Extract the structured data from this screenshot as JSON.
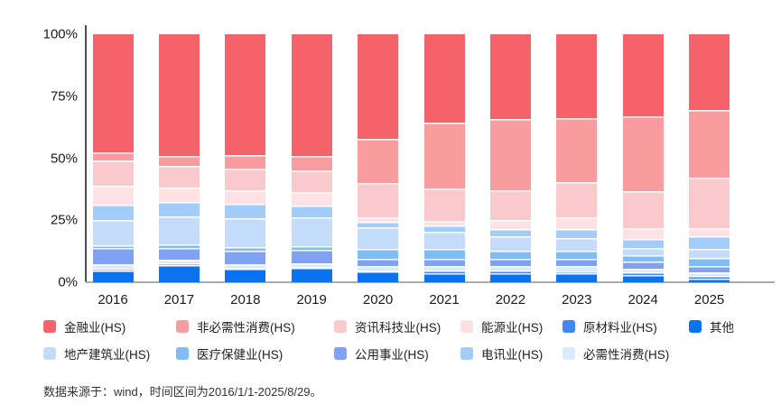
{
  "chart_data": {
    "type": "bar",
    "stacked": true,
    "percent_stacked": true,
    "categories": [
      "2016",
      "2017",
      "2018",
      "2019",
      "2020",
      "2021",
      "2022",
      "2023",
      "2024",
      "2025"
    ],
    "yticks": [
      "100%",
      "75%",
      "50%",
      "25%",
      "0%"
    ],
    "ylim": [
      0,
      100
    ],
    "grid": false,
    "legend_position": "bottom",
    "series_bottom_to_top": [
      {
        "name": "其他",
        "color": "#0b72f0",
        "values": [
          4.8,
          7.0,
          5.3,
          5.7,
          4.2,
          3.8,
          3.6,
          3.5,
          3.0,
          1.4
        ]
      },
      {
        "name": "原材料业(HS)",
        "color": "#4189f2",
        "values": [
          0.5,
          0.5,
          0.4,
          0.4,
          0.6,
          0.9,
          1.0,
          1.0,
          1.0,
          1.2
        ]
      },
      {
        "name": "必需性消费(HS)",
        "color": "#d9eafc",
        "values": [
          2.0,
          1.5,
          1.6,
          1.6,
          1.6,
          1.8,
          2.0,
          2.2,
          1.6,
          1.3
        ]
      },
      {
        "name": "公用事业(HS)",
        "color": "#81a2f2",
        "values": [
          6.7,
          5.0,
          5.6,
          5.4,
          3.1,
          2.8,
          3.0,
          2.9,
          2.6,
          2.7
        ]
      },
      {
        "name": "医疗保健业(HS)",
        "color": "#7fbdf7",
        "values": [
          0.9,
          1.2,
          1.4,
          1.3,
          4.1,
          4.2,
          3.0,
          3.3,
          2.6,
          3.4
        ]
      },
      {
        "name": "地产建筑业(HS)",
        "color": "#c4dcfa",
        "values": [
          10.2,
          11.5,
          11.4,
          11.8,
          8.6,
          7.0,
          5.9,
          4.9,
          3.0,
          3.5
        ]
      },
      {
        "name": "电讯业(HS)",
        "color": "#a2cdf9",
        "values": [
          6.2,
          5.7,
          5.8,
          4.8,
          2.3,
          2.4,
          3.0,
          3.7,
          3.7,
          5.1
        ]
      },
      {
        "name": "能源业(HS)",
        "color": "#fde1e4",
        "values": [
          7.6,
          5.7,
          5.8,
          5.4,
          1.7,
          2.0,
          3.7,
          4.8,
          4.2,
          3.3
        ]
      },
      {
        "name": "资讯科技业(HS)",
        "color": "#fac9cc",
        "values": [
          10.1,
          8.7,
          8.5,
          8.8,
          13.9,
          13.0,
          11.8,
          14.2,
          15.2,
          20.3
        ]
      },
      {
        "name": "非必需性消费(HS)",
        "color": "#f99c9f",
        "values": [
          3.5,
          4.2,
          5.4,
          5.8,
          17.6,
          26.4,
          29.0,
          25.6,
          30.0,
          27.2
        ]
      },
      {
        "name": "金融业(HS)",
        "color": "#f5626a",
        "values": [
          47.5,
          49.0,
          48.8,
          49.0,
          42.3,
          35.7,
          34.0,
          33.9,
          33.1,
          30.6
        ]
      }
    ],
    "legend_rows": [
      [
        "金融业(HS)",
        "非必需性消费(HS)",
        "资讯科技业(HS)",
        "能源业(HS)",
        "原材料业(HS)",
        "其他"
      ],
      [
        "地产建筑业(HS)",
        "医疗保健业(HS)",
        "公用事业(HS)",
        "电讯业(HS)",
        "必需性消费(HS)"
      ]
    ]
  },
  "footer": {
    "source_note": "数据来源于：wind，时间区间为2016/1/1-2025/8/29。"
  }
}
